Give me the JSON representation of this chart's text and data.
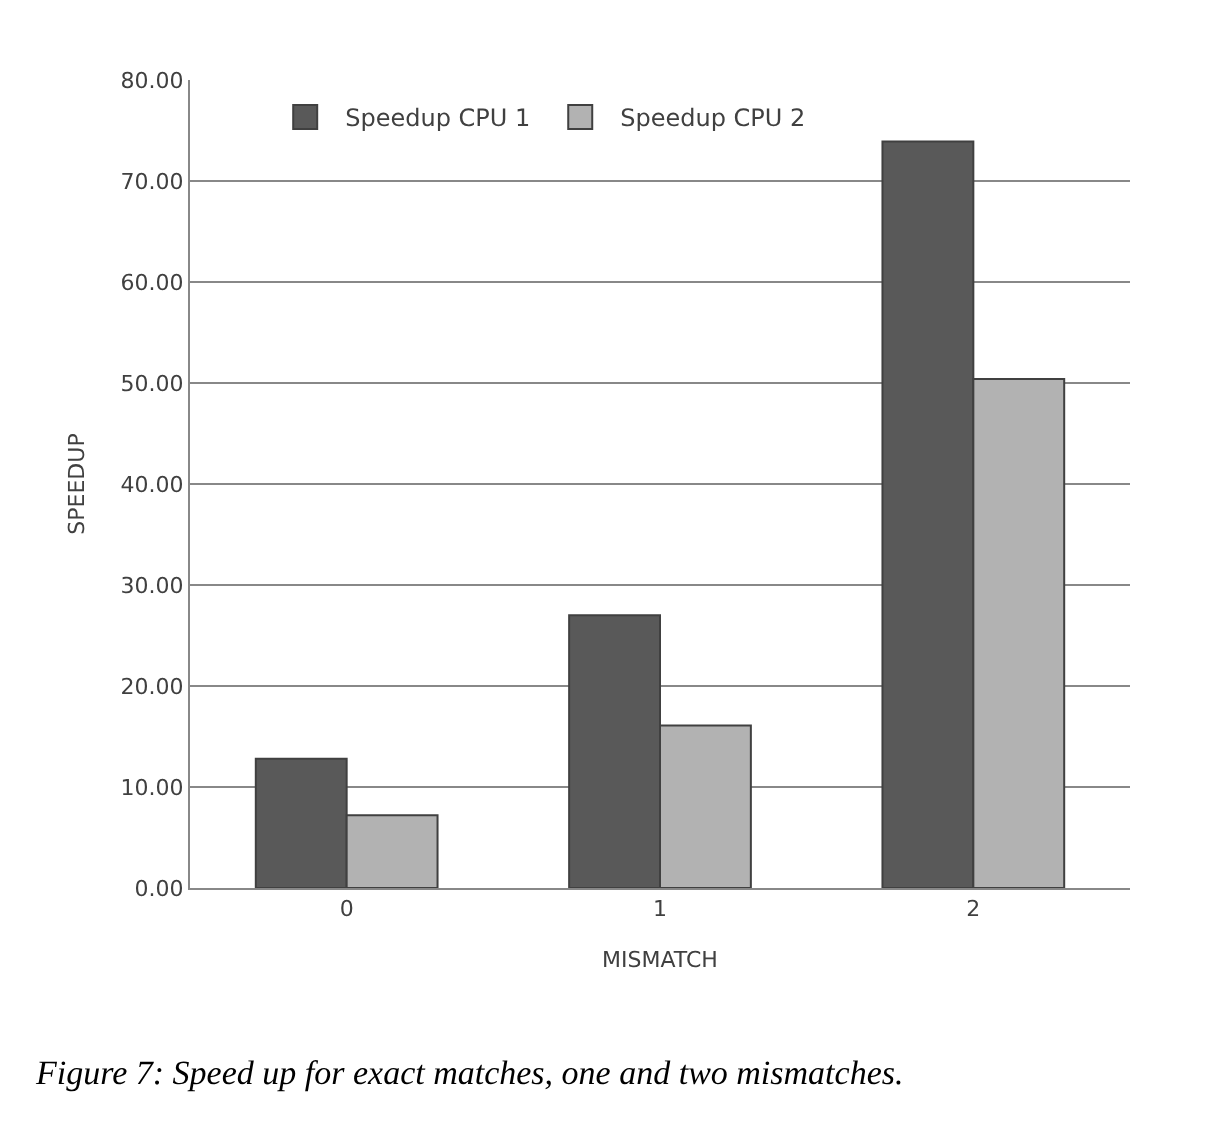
{
  "chart_data": {
    "type": "bar",
    "xlabel": "MISMATCH",
    "ylabel": "SPEEDUP",
    "categories": [
      "0",
      "1",
      "2"
    ],
    "series": [
      {
        "name": "Speedup CPU 1",
        "color": "#595959",
        "values": [
          12.8,
          27.0,
          73.9
        ]
      },
      {
        "name": "Speedup CPU 2",
        "color": "#b2b2b2",
        "values": [
          7.2,
          16.1,
          50.4
        ]
      }
    ],
    "ylim": [
      0,
      80
    ],
    "yticks": [
      {
        "value": 0,
        "label": "0.00"
      },
      {
        "value": 10,
        "label": "10.00"
      },
      {
        "value": 20,
        "label": "20.00"
      },
      {
        "value": 30,
        "label": "30.00"
      },
      {
        "value": 40,
        "label": "40.00"
      },
      {
        "value": 50,
        "label": "50.00"
      },
      {
        "value": 60,
        "label": "60.00"
      },
      {
        "value": 70,
        "label": "70.00"
      },
      {
        "value": 80,
        "label": "80.00"
      }
    ],
    "grid": "y",
    "legend": "top left",
    "annotations": [
      "Figure 7: Speed up for exact matches, one and two mismatches."
    ]
  }
}
